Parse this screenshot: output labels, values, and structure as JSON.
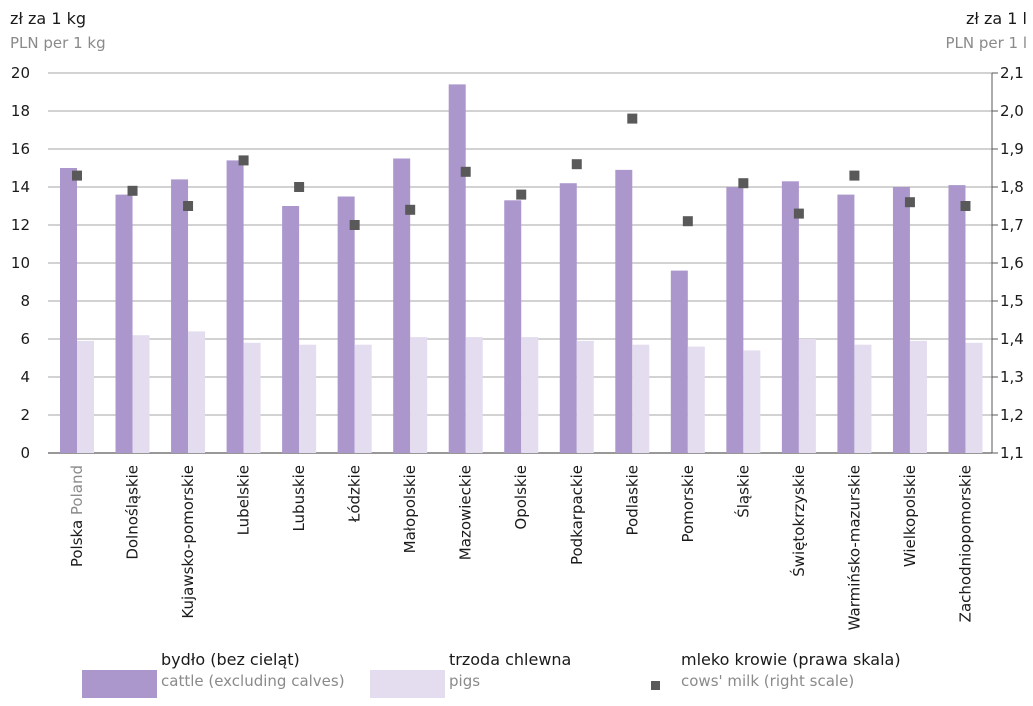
{
  "chart_data": {
    "type": "bar",
    "left_axis": {
      "unit_pl": "zł za 1 kg",
      "unit_en": "PLN per 1 kg",
      "ylim": [
        0,
        20
      ],
      "ticks": [
        "0",
        "2",
        "4",
        "6",
        "8",
        "10",
        "12",
        "14",
        "16",
        "18",
        "20"
      ]
    },
    "right_axis": {
      "unit_pl": "zł za 1 l",
      "unit_en": "PLN per 1 l",
      "ylim": [
        1.1,
        2.1
      ],
      "ticks": [
        "1,1",
        "1,2",
        "1,3",
        "1,4",
        "1,5",
        "1,6",
        "1,7",
        "1,8",
        "1,9",
        "2,0",
        "2,1"
      ]
    },
    "grid": true,
    "categories": [
      {
        "pl": "Polska",
        "en": "Poland"
      },
      {
        "pl": "Dolnośląskie"
      },
      {
        "pl": "Kujawsko-pomorskie"
      },
      {
        "pl": "Lubelskie"
      },
      {
        "pl": "Lubuskie"
      },
      {
        "pl": "Łódzkie"
      },
      {
        "pl": "Małopolskie"
      },
      {
        "pl": "Mazowieckie"
      },
      {
        "pl": "Opolskie"
      },
      {
        "pl": "Podkarpackie"
      },
      {
        "pl": "Podlaskie"
      },
      {
        "pl": "Pomorskie"
      },
      {
        "pl": "Śląskie"
      },
      {
        "pl": "Świętokrzyskie"
      },
      {
        "pl": "Warmińsko-mazurskie"
      },
      {
        "pl": "Wielkopolskie"
      },
      {
        "pl": "Zachodniopomorskie"
      }
    ],
    "series": [
      {
        "name_pl": "bydło (bez cieląt)",
        "name_en": "cattle (excluding calves)",
        "type": "bar",
        "axis": "left",
        "color": "#ab97cc",
        "values": [
          15.0,
          13.6,
          14.4,
          15.4,
          13.0,
          13.5,
          15.5,
          19.4,
          13.3,
          14.2,
          14.9,
          9.6,
          14.0,
          14.3,
          13.6,
          14.0,
          14.1
        ]
      },
      {
        "name_pl": "trzoda chlewna",
        "name_en": "pigs",
        "type": "bar",
        "axis": "left",
        "color": "#e4dcef",
        "values": [
          5.9,
          6.2,
          6.4,
          5.8,
          5.7,
          5.7,
          6.1,
          6.1,
          6.1,
          5.9,
          5.7,
          5.6,
          5.4,
          6.0,
          5.7,
          5.9,
          5.8
        ]
      },
      {
        "name_pl": "mleko krowie (prawa skala)",
        "name_en": "cows' milk  (right scale)",
        "type": "scatter",
        "axis": "right",
        "color": "#595959",
        "values": [
          1.83,
          1.79,
          1.75,
          1.87,
          1.8,
          1.7,
          1.74,
          1.84,
          1.78,
          1.86,
          1.98,
          1.71,
          1.81,
          1.73,
          1.83,
          1.76,
          1.75
        ]
      }
    ]
  }
}
